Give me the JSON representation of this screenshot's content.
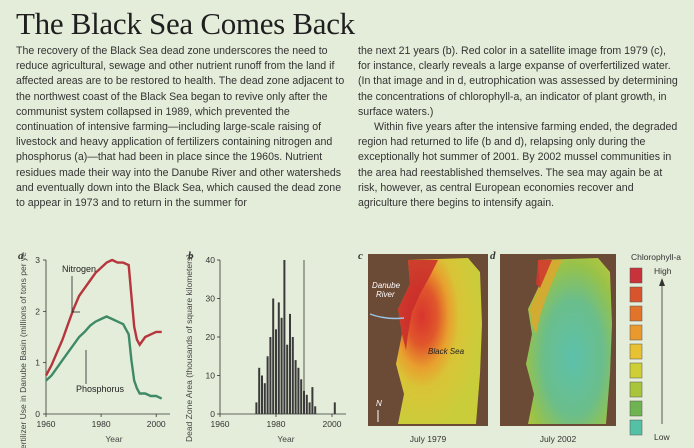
{
  "article": {
    "title": "The Black Sea Comes Back",
    "left_col": [
      "The recovery of the Black Sea dead zone underscores the need to reduce agricultural, sewage and other nutrient runoff from the land if affected areas are to be restored to health. The dead zone adjacent to the northwest coast of the Black Sea began to revive only after the communist system collapsed in 1989, which prevented the continuation of intensive farming—including large-scale raising of livestock and heavy application of fertilizers containing nitrogen and phosphorus (a)—that had been in place since the 1960s. Nutrient residues made their way into the Danube River and other watersheds and eventually down into the Black Sea, which caused the dead zone to appear in 1973 and to return in the summer for"
    ],
    "right_col": [
      "the next 21 years (b). Red color in a satellite image from 1979 (c), for instance, clearly reveals a large expanse of overfertilized water. (In that image and in d, eutrophication was assessed by determining the concentrations of chlorophyll-a, an indicator of plant growth, in surface waters.)",
      "Within five years after the intensive farming ended, the degraded region had returned to life (b and d), relapsing only during the exceptionally hot summer of 2001. By 2002 mussel communities in the area had reestablished themselves. The sea may again be at risk, however, as central European economies recover and agriculture there begins to intensify again."
    ]
  },
  "panels": {
    "a": "a",
    "b": "b",
    "c": "c",
    "d": "d"
  },
  "colors": {
    "nitrogen": "#b5363d",
    "phosphorus": "#3f8a66",
    "bars": "#3a3a3a",
    "background": "#e4edd9"
  },
  "chart_data": [
    {
      "type": "line",
      "panel": "a",
      "xlabel": "Year",
      "ylabel": "Fertilizer Use in Danube Basin (millions of tons per year)",
      "xlim": [
        1960,
        2005
      ],
      "ylim": [
        0,
        3
      ],
      "xticks": [
        1960,
        1980,
        2000
      ],
      "yticks": [
        0,
        1,
        2,
        3
      ],
      "series": [
        {
          "name": "Nitrogen",
          "x": [
            1960,
            1962,
            1964,
            1966,
            1968,
            1970,
            1972,
            1974,
            1976,
            1978,
            1980,
            1982,
            1984,
            1986,
            1988,
            1990,
            1991,
            1992,
            1993,
            1994,
            1996,
            1998,
            2000,
            2002
          ],
          "values": [
            0.75,
            0.95,
            1.2,
            1.45,
            1.75,
            2.05,
            2.3,
            2.45,
            2.6,
            2.75,
            2.85,
            2.95,
            3.0,
            2.95,
            2.95,
            2.9,
            2.3,
            1.7,
            1.45,
            1.35,
            1.5,
            1.55,
            1.6,
            1.6
          ]
        },
        {
          "name": "Phosphorus",
          "x": [
            1960,
            1962,
            1964,
            1966,
            1968,
            1970,
            1972,
            1974,
            1976,
            1978,
            1980,
            1982,
            1984,
            1986,
            1988,
            1990,
            1991,
            1992,
            1993,
            1994,
            1996,
            1998,
            2000,
            2002
          ],
          "values": [
            0.65,
            0.75,
            0.9,
            1.05,
            1.2,
            1.35,
            1.5,
            1.6,
            1.72,
            1.8,
            1.85,
            1.9,
            1.85,
            1.8,
            1.75,
            1.55,
            1.05,
            0.65,
            0.5,
            0.4,
            0.4,
            0.35,
            0.35,
            0.3
          ]
        }
      ]
    },
    {
      "type": "bar",
      "panel": "b",
      "xlabel": "Year",
      "ylabel": "Dead Zone Area (thousands of square kilometers)",
      "xlim": [
        1960,
        2005
      ],
      "ylim": [
        0,
        40
      ],
      "xticks": [
        1960,
        1980,
        2000
      ],
      "yticks": [
        0,
        10,
        20,
        30,
        40
      ],
      "x": [
        1973,
        1974,
        1975,
        1976,
        1977,
        1978,
        1979,
        1980,
        1981,
        1982,
        1983,
        1984,
        1985,
        1986,
        1987,
        1988,
        1989,
        1990,
        1991,
        1992,
        1993,
        1994,
        2001
      ],
      "values": [
        3,
        12,
        10,
        8,
        15,
        20,
        30,
        22,
        29,
        25,
        40,
        18,
        26,
        20,
        14,
        12,
        9,
        6,
        5,
        3,
        7,
        2,
        3
      ]
    }
  ],
  "maps": {
    "c_caption": "July 1979",
    "d_caption": "July 2002",
    "river_label_1": "Danube",
    "river_label_2": "River",
    "sea_label": "Black Sea",
    "north_label": "N"
  },
  "legend": {
    "title": "Chlorophyll-a",
    "high": "High",
    "low": "Low",
    "swatches": [
      "#c8323a",
      "#d8542c",
      "#e2732b",
      "#ea9a2c",
      "#e8c232",
      "#cfcf35",
      "#a9c53c",
      "#6fb451",
      "#54c0a6"
    ]
  }
}
